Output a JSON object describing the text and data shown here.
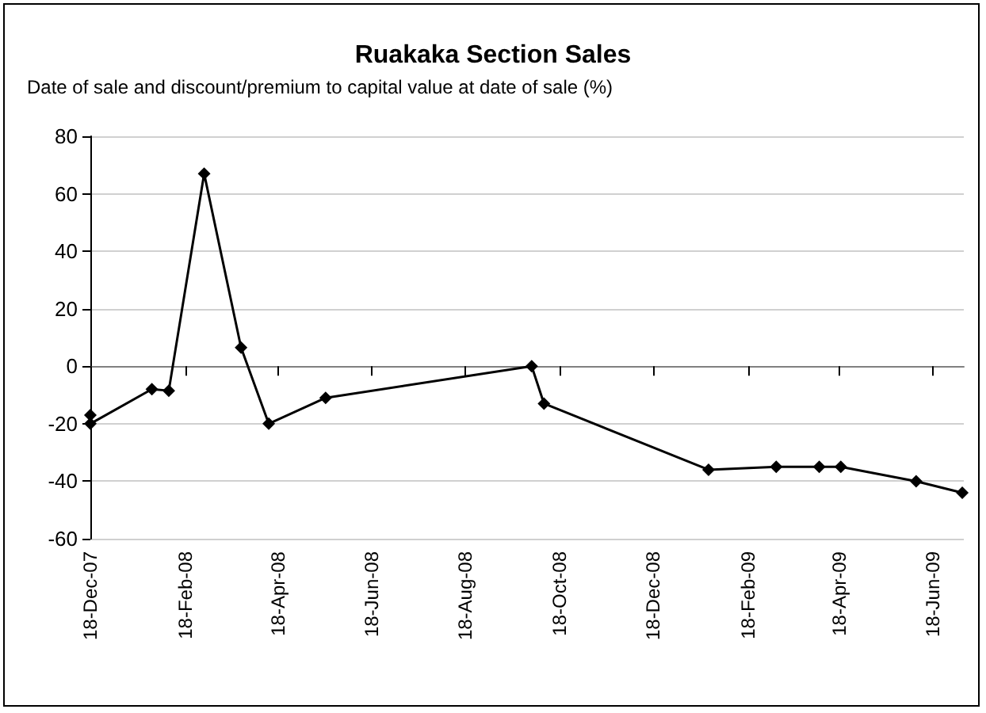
{
  "chart_data": {
    "type": "line",
    "title": "Ruakaka Section Sales",
    "subtitle": "Date of sale and discount/premium to capital value at date of sale (%)",
    "x": [
      "2007-12-18",
      "2007-12-18",
      "2008-01-27",
      "2008-02-07",
      "2008-03-01",
      "2008-03-25",
      "2008-04-12",
      "2008-05-19",
      "2008-09-30",
      "2008-10-08",
      "2009-01-23",
      "2009-03-08",
      "2009-04-05",
      "2009-04-19",
      "2009-06-07",
      "2009-07-07"
    ],
    "series": [
      {
        "color": "#000000",
        "values": [
          -17,
          -20,
          -8,
          -8.5,
          67,
          6.5,
          -20,
          -11,
          0,
          -13,
          -36,
          -35,
          -35,
          -35,
          -40,
          -44
        ]
      }
    ],
    "xlim": [
      "2007-12-18",
      "2009-07-08"
    ],
    "xticks": [
      {
        "value": "2007-12-18",
        "label": "18-Dec-07"
      },
      {
        "value": "2008-02-18",
        "label": "18-Feb-08"
      },
      {
        "value": "2008-04-18",
        "label": "18-Apr-08"
      },
      {
        "value": "2008-06-18",
        "label": "18-Jun-08"
      },
      {
        "value": "2008-08-18",
        "label": "18-Aug-08"
      },
      {
        "value": "2008-10-18",
        "label": "18-Oct-08"
      },
      {
        "value": "2008-12-18",
        "label": "18-Dec-08"
      },
      {
        "value": "2009-02-18",
        "label": "18-Feb-09"
      },
      {
        "value": "2009-04-18",
        "label": "18-Apr-09"
      },
      {
        "value": "2009-06-18",
        "label": "18-Jun-09"
      }
    ],
    "ylim": [
      -60,
      80
    ],
    "yticks": [
      -60,
      -40,
      -20,
      0,
      20,
      40,
      60,
      80
    ],
    "grid": "y",
    "marker": "diamond",
    "line_style": "solid"
  }
}
